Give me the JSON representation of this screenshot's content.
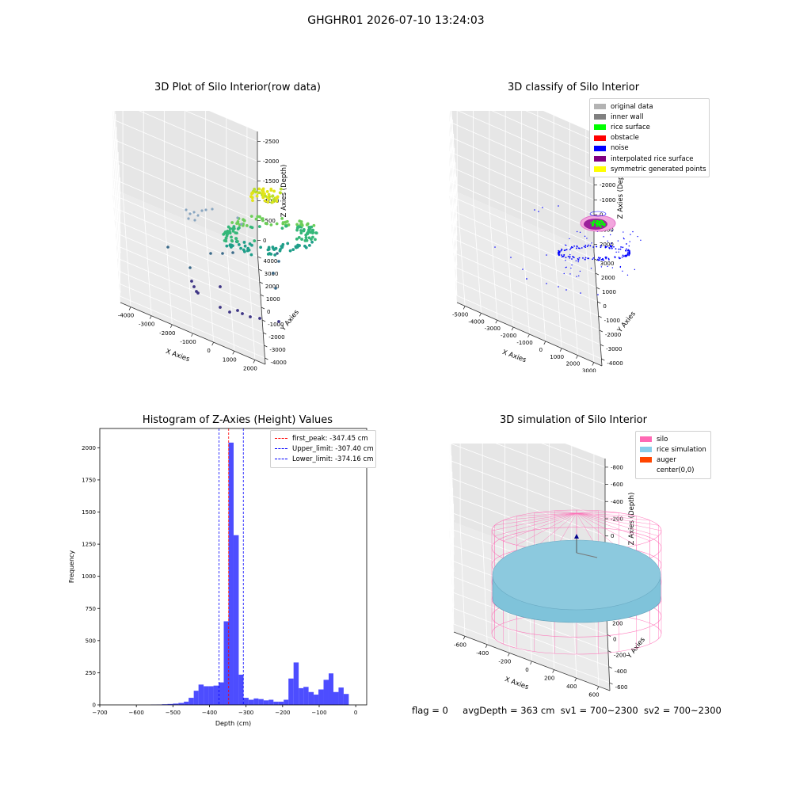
{
  "suptitle": "GHGHR01 2026-07-10 13:24:03",
  "panel1": {
    "title": "3D Plot of Silo Interior(row data)",
    "xlabel": "X Axies",
    "ylabel": "Y Axies",
    "zlabel": "Z Axies (Depth)",
    "xticks": [
      "-4000",
      "-3000",
      "-2000",
      "-1000",
      "0",
      "1000",
      "2000"
    ],
    "yticks": [
      "-4000",
      "-3000",
      "-2000",
      "-1000",
      "0",
      "1000",
      "2000",
      "3000",
      "4000"
    ],
    "zticks": [
      "0",
      "-500",
      "-1000",
      "-1500",
      "-2000",
      "-2500"
    ]
  },
  "panel2": {
    "title": "3D classify of Silo Interior",
    "xlabel": "X Axies",
    "ylabel": "Y Axies",
    "zlabel": "Z Axies (Depth)",
    "xticks": [
      "-5000",
      "-4000",
      "-3000",
      "-2000",
      "-1000",
      "0",
      "1000",
      "2000",
      "3000"
    ],
    "yticks": [
      "-4000",
      "-3000",
      "-2000",
      "-1000",
      "0",
      "1000",
      "2000",
      "3000"
    ],
    "zticks": [
      "2000",
      "1000",
      "0",
      "-1000",
      "-2000",
      "-3000",
      "-4000",
      "-5000"
    ],
    "legend": [
      {
        "label": "original data",
        "color": "#b3b3b3"
      },
      {
        "label": "inner wall",
        "color": "#808080"
      },
      {
        "label": "rice surface",
        "color": "#00ff00"
      },
      {
        "label": "obstacle",
        "color": "#ff0000"
      },
      {
        "label": "noise",
        "color": "#0000ff"
      },
      {
        "label": "interpolated rice surface",
        "color": "#800080"
      },
      {
        "label": "symmetric generated points",
        "color": "#ffff00"
      }
    ]
  },
  "panel4": {
    "title": "3D simulation of Silo Interior",
    "xlabel": "X Axies",
    "ylabel": "Y Axies",
    "zlabel": "Z Axies (Depth)",
    "xticks": [
      "-600",
      "-400",
      "-200",
      "0",
      "200",
      "400",
      "600"
    ],
    "yticks": [
      "-600",
      "-400",
      "-200",
      "0",
      "200",
      "400",
      "600"
    ],
    "zticks": [
      "400",
      "200",
      "0",
      "-200",
      "-400",
      "-600",
      "-800"
    ],
    "legend": [
      {
        "label": "silo",
        "color": "#ff69b4"
      },
      {
        "label": "rice simulation",
        "color": "#87ceeb"
      },
      {
        "label": "auger",
        "color": "#ff4500"
      },
      {
        "label": "center(0,0)",
        "color": "#ffffff"
      }
    ]
  },
  "footer": {
    "flag": "flag = 0",
    "avgdepth": "avgDepth = 363 cm",
    "sv1": "sv1 = 700~2300",
    "sv2": "sv2 = 700~2300"
  },
  "chart_data": [
    {
      "type": "histogram",
      "title": "Histogram of Z-Axies (Height) Values",
      "xlabel": "Depth (cm)",
      "ylabel": "Frequency",
      "xlim": [
        -700,
        30
      ],
      "ylim": [
        0,
        2150
      ],
      "xticks": [
        -700,
        -600,
        -500,
        -400,
        -300,
        -200,
        -100,
        0
      ],
      "yticks": [
        0,
        250,
        500,
        750,
        1000,
        1250,
        1500,
        1750,
        2000
      ],
      "bar_color": "#4d4dff",
      "bins": [
        {
          "x0": -560,
          "x1": -545,
          "count": 2
        },
        {
          "x0": -545,
          "x1": -530,
          "count": 3
        },
        {
          "x0": -530,
          "x1": -515,
          "count": 5
        },
        {
          "x0": -515,
          "x1": -500,
          "count": 7
        },
        {
          "x0": -500,
          "x1": -485,
          "count": 10
        },
        {
          "x0": -485,
          "x1": -470,
          "count": 15
        },
        {
          "x0": -470,
          "x1": -457,
          "count": 25
        },
        {
          "x0": -457,
          "x1": -443,
          "count": 55
        },
        {
          "x0": -443,
          "x1": -430,
          "count": 110
        },
        {
          "x0": -430,
          "x1": -416,
          "count": 158
        },
        {
          "x0": -416,
          "x1": -402,
          "count": 145
        },
        {
          "x0": -402,
          "x1": -389,
          "count": 145
        },
        {
          "x0": -389,
          "x1": -375,
          "count": 150
        },
        {
          "x0": -375,
          "x1": -361,
          "count": 175
        },
        {
          "x0": -361,
          "x1": -348,
          "count": 650
        },
        {
          "x0": -348,
          "x1": -334,
          "count": 2040
        },
        {
          "x0": -334,
          "x1": -320,
          "count": 1320
        },
        {
          "x0": -320,
          "x1": -307,
          "count": 235
        },
        {
          "x0": -307,
          "x1": -293,
          "count": 55
        },
        {
          "x0": -293,
          "x1": -279,
          "count": 40
        },
        {
          "x0": -279,
          "x1": -266,
          "count": 50
        },
        {
          "x0": -266,
          "x1": -252,
          "count": 45
        },
        {
          "x0": -252,
          "x1": -238,
          "count": 35
        },
        {
          "x0": -238,
          "x1": -225,
          "count": 40
        },
        {
          "x0": -225,
          "x1": -211,
          "count": 25
        },
        {
          "x0": -211,
          "x1": -197,
          "count": 25
        },
        {
          "x0": -197,
          "x1": -184,
          "count": 40
        },
        {
          "x0": -184,
          "x1": -170,
          "count": 205
        },
        {
          "x0": -170,
          "x1": -156,
          "count": 330
        },
        {
          "x0": -156,
          "x1": -143,
          "count": 130
        },
        {
          "x0": -143,
          "x1": -129,
          "count": 140
        },
        {
          "x0": -129,
          "x1": -115,
          "count": 100
        },
        {
          "x0": -115,
          "x1": -102,
          "count": 80
        },
        {
          "x0": -102,
          "x1": -88,
          "count": 120
        },
        {
          "x0": -88,
          "x1": -74,
          "count": 195
        },
        {
          "x0": -74,
          "x1": -61,
          "count": 245
        },
        {
          "x0": -61,
          "x1": -47,
          "count": 100
        },
        {
          "x0": -47,
          "x1": -33,
          "count": 135
        },
        {
          "x0": -33,
          "x1": -19,
          "count": 85
        },
        {
          "x0": -19,
          "x1": -5,
          "count": 0
        }
      ],
      "vlines": [
        {
          "x": -347.45,
          "color": "#ff0000",
          "label": "first_peak: -347.45 cm"
        },
        {
          "x": -307.4,
          "color": "#0000ff",
          "label": "Upper_limit: -307.40 cm"
        },
        {
          "x": -374.16,
          "color": "#0000ff",
          "label": "Lower_limit: -374.16 cm"
        }
      ],
      "legend_position": "upper right"
    }
  ]
}
